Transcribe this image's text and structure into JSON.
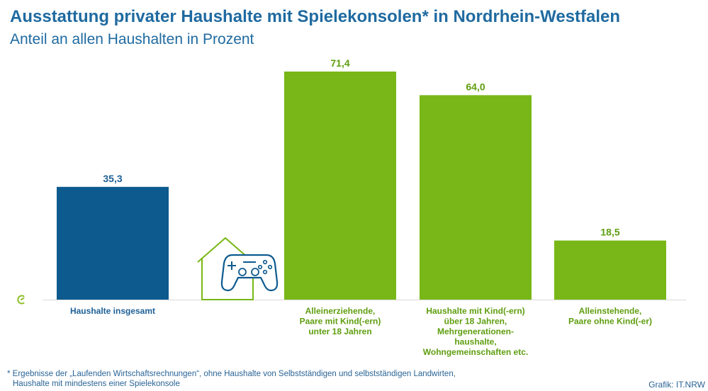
{
  "title": "Ausstattung privater Haushalte mit Spielekonsolen* in Nordrhein-Westfalen",
  "subtitle": "Anteil an allen Haushalten in Prozent",
  "footnote": {
    "line1": "* Ergebnisse der „Laufenden Wirtschaftsrechnungen“, ohne Haushalte von Selbstständigen und selbstständigen Landwirten,",
    "line2": "Haushalte mit mindestens einer Spielekonsole"
  },
  "credit": "Grafik: IT.NRW",
  "colors": {
    "blue": "#0d5a8f",
    "green": "#78b717",
    "blue_text": "#1d5f96",
    "green_text": "#5f9e0f",
    "axis": "#d9d9d9"
  },
  "icons": [
    "house-gamepad-icon",
    "logo-c-icon"
  ],
  "chart_data": {
    "type": "bar",
    "title": "Ausstattung privater Haushalte mit Spielekonsolen* in Nordrhein-Westfalen",
    "subtitle": "Anteil an allen Haushalten in Prozent",
    "ylim": [
      0,
      75
    ],
    "grid": false,
    "categories": [
      [
        "Haushalte insgesamt"
      ],
      [
        "Alleinerziehende,",
        "Paare mit Kind(-ern)",
        "unter 18 Jahren"
      ],
      [
        "Haushalte mit Kind(-ern)",
        "über 18 Jahren,",
        "Mehrgenerationen-",
        "haushalte,",
        "Wohngemeinschaften etc."
      ],
      [
        "Alleinstehende,",
        "Paare ohne Kind(-er)"
      ]
    ],
    "values": [
      35.3,
      71.4,
      64.0,
      18.5
    ],
    "value_labels": [
      "35,3",
      "71,4",
      "64,0",
      "18,5"
    ],
    "bar_colors": [
      "#0d5a8f",
      "#78b717",
      "#78b717",
      "#78b717"
    ],
    "label_colors": [
      "#1d5f96",
      "#5f9e0f",
      "#5f9e0f",
      "#5f9e0f"
    ]
  }
}
